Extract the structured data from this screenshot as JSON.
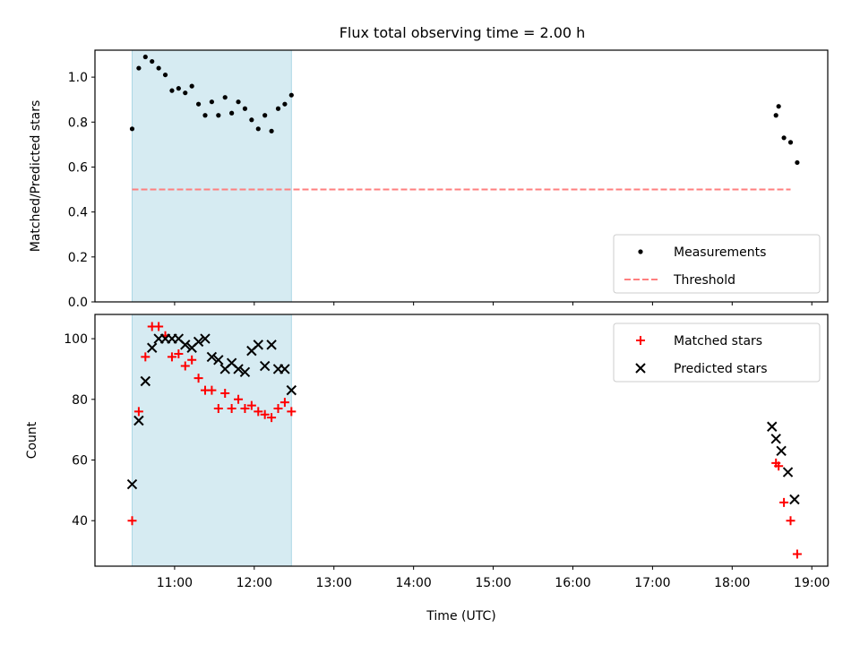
{
  "chart_data": [
    {
      "type": "scatter",
      "title": "Flux total observing time = 2.00 h",
      "xlabel": "",
      "ylabel": "Matched/Predicted stars",
      "ylim": [
        0,
        1.12
      ],
      "yticks": [
        "0.0",
        "0.2",
        "0.4",
        "0.6",
        "0.8",
        "1.0"
      ],
      "ytick_values": [
        0,
        0.2,
        0.4,
        0.6,
        0.8,
        1.0
      ],
      "highlight_span": [
        "10:28",
        "12:28"
      ],
      "highlight_color": "#add8e6",
      "legend_position": "lower right",
      "series": [
        {
          "name": "Measurements",
          "marker": "dot",
          "color": "#000000",
          "x": [
            "10:28",
            "10:33",
            "10:38",
            "10:43",
            "10:48",
            "10:53",
            "10:58",
            "11:03",
            "11:08",
            "11:13",
            "11:18",
            "11:23",
            "11:28",
            "11:33",
            "11:38",
            "11:43",
            "11:48",
            "11:53",
            "11:58",
            "12:03",
            "12:08",
            "12:13",
            "12:18",
            "12:23",
            "12:28",
            "18:33",
            "18:35",
            "18:39",
            "18:44",
            "18:49"
          ],
          "values": [
            0.77,
            1.04,
            1.09,
            1.07,
            1.04,
            1.01,
            0.94,
            0.95,
            0.93,
            0.96,
            0.88,
            0.83,
            0.89,
            0.83,
            0.91,
            0.84,
            0.89,
            0.86,
            0.81,
            0.77,
            0.83,
            0.76,
            0.86,
            0.88,
            0.92,
            0.83,
            0.87,
            0.73,
            0.71,
            0.62
          ]
        },
        {
          "name": "Threshold",
          "style": "dashed",
          "color": "#ff7f7f",
          "x": [
            "10:28",
            "18:44"
          ],
          "values": [
            0.5,
            0.5
          ]
        }
      ]
    },
    {
      "type": "scatter",
      "title": "",
      "xlabel": "Time (UTC)",
      "ylabel": "Count",
      "ylim": [
        25,
        108
      ],
      "yticks": [
        "40",
        "60",
        "80",
        "100"
      ],
      "ytick_values": [
        40,
        60,
        80,
        100
      ],
      "xticks": [
        "11:00",
        "12:00",
        "13:00",
        "14:00",
        "15:00",
        "16:00",
        "17:00",
        "18:00",
        "19:00"
      ],
      "xlim": [
        "10:00",
        "19:12"
      ],
      "highlight_span": [
        "10:28",
        "12:28"
      ],
      "highlight_color": "#add8e6",
      "legend_position": "upper right",
      "series": [
        {
          "name": "Matched stars",
          "marker": "plus",
          "color": "#ff0000",
          "x": [
            "10:28",
            "10:33",
            "10:38",
            "10:43",
            "10:48",
            "10:53",
            "10:58",
            "11:03",
            "11:08",
            "11:13",
            "11:18",
            "11:23",
            "11:28",
            "11:33",
            "11:38",
            "11:43",
            "11:48",
            "11:53",
            "11:58",
            "12:03",
            "12:08",
            "12:13",
            "12:18",
            "12:23",
            "12:28",
            "18:33",
            "18:35",
            "18:39",
            "18:44",
            "18:49"
          ],
          "values": [
            40,
            76,
            94,
            104,
            104,
            101,
            94,
            95,
            91,
            93,
            87,
            83,
            83,
            77,
            82,
            77,
            80,
            77,
            78,
            76,
            75,
            74,
            77,
            79,
            76,
            59,
            58,
            46,
            40,
            29
          ]
        },
        {
          "name": "Predicted stars",
          "marker": "x",
          "color": "#000000",
          "x": [
            "10:28",
            "10:33",
            "10:38",
            "10:43",
            "10:48",
            "10:53",
            "10:58",
            "11:03",
            "11:08",
            "11:13",
            "11:18",
            "11:23",
            "11:28",
            "11:33",
            "11:38",
            "11:43",
            "11:48",
            "11:53",
            "11:58",
            "12:03",
            "12:08",
            "12:13",
            "12:18",
            "12:23",
            "12:28",
            "18:30",
            "18:33",
            "18:37",
            "18:42",
            "18:47"
          ],
          "values": [
            52,
            73,
            86,
            97,
            100,
            100,
            100,
            100,
            98,
            97,
            99,
            100,
            94,
            93,
            90,
            92,
            90,
            89,
            96,
            98,
            91,
            98,
            90,
            90,
            83,
            71,
            67,
            63,
            56,
            47
          ]
        }
      ]
    }
  ]
}
